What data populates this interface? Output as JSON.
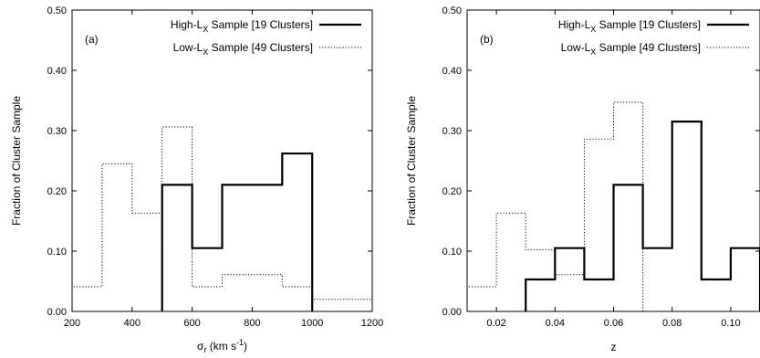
{
  "chart_data": [
    {
      "type": "histogram",
      "panel_label": "(a)",
      "xlabel": "σr (km s-1)",
      "ylabel": "Fraction of Cluster Sample",
      "xlim": [
        200,
        1200
      ],
      "ylim": [
        0,
        0.5
      ],
      "xticks": [
        200,
        400,
        600,
        800,
        1000,
        1200
      ],
      "xtick_labels": [
        "200",
        "400",
        "600",
        "800",
        "1000",
        "1200"
      ],
      "yticks": [
        0,
        0.1,
        0.2,
        0.3,
        0.4,
        0.5
      ],
      "ytick_labels": [
        "0.00",
        "0.10",
        "0.20",
        "0.30",
        "0.40",
        "0.50"
      ],
      "legend_position": "top-right",
      "series": [
        {
          "name": "High-LX Sample [19 Clusters]",
          "style": "solid",
          "bin_edges": [
            500,
            600,
            700,
            800,
            900,
            1000
          ],
          "values": [
            0.21,
            0.105,
            0.21,
            0.21,
            0.262
          ]
        },
        {
          "name": "Low-LX Sample [49 Clusters]",
          "style": "dotted",
          "bin_edges": [
            200,
            300,
            400,
            500,
            600,
            700,
            800,
            900,
            1000,
            1200
          ],
          "values": [
            0.041,
            0.245,
            0.163,
            0.306,
            0.041,
            0.061,
            0.061,
            0.041,
            0.02
          ]
        }
      ]
    },
    {
      "type": "histogram",
      "panel_label": "(b)",
      "xlabel": "z",
      "ylabel": "Fraction of Cluster Sample",
      "xlim": [
        0.01,
        0.11
      ],
      "ylim": [
        0,
        0.5
      ],
      "xticks": [
        0.02,
        0.04,
        0.06,
        0.08,
        0.1
      ],
      "xtick_labels": [
        "0.02",
        "0.04",
        "0.06",
        "0.08",
        "0.10"
      ],
      "yticks": [
        0,
        0.1,
        0.2,
        0.3,
        0.4,
        0.5
      ],
      "ytick_labels": [
        "0.00",
        "0.10",
        "0.20",
        "0.30",
        "0.40",
        "0.50"
      ],
      "legend_position": "top-right",
      "series": [
        {
          "name": "High-LX Sample [19 Clusters]",
          "style": "solid",
          "bin_edges": [
            0.03,
            0.04,
            0.05,
            0.06,
            0.07,
            0.08,
            0.09,
            0.1,
            0.11
          ],
          "values": [
            0.053,
            0.105,
            0.053,
            0.21,
            0.105,
            0.315,
            0.053,
            0.105
          ]
        },
        {
          "name": "Low-LX Sample [49 Clusters]",
          "style": "dotted",
          "bin_edges": [
            0.01,
            0.02,
            0.03,
            0.04,
            0.05,
            0.06,
            0.07
          ],
          "values": [
            0.041,
            0.163,
            0.102,
            0.061,
            0.286,
            0.347
          ]
        }
      ]
    }
  ]
}
